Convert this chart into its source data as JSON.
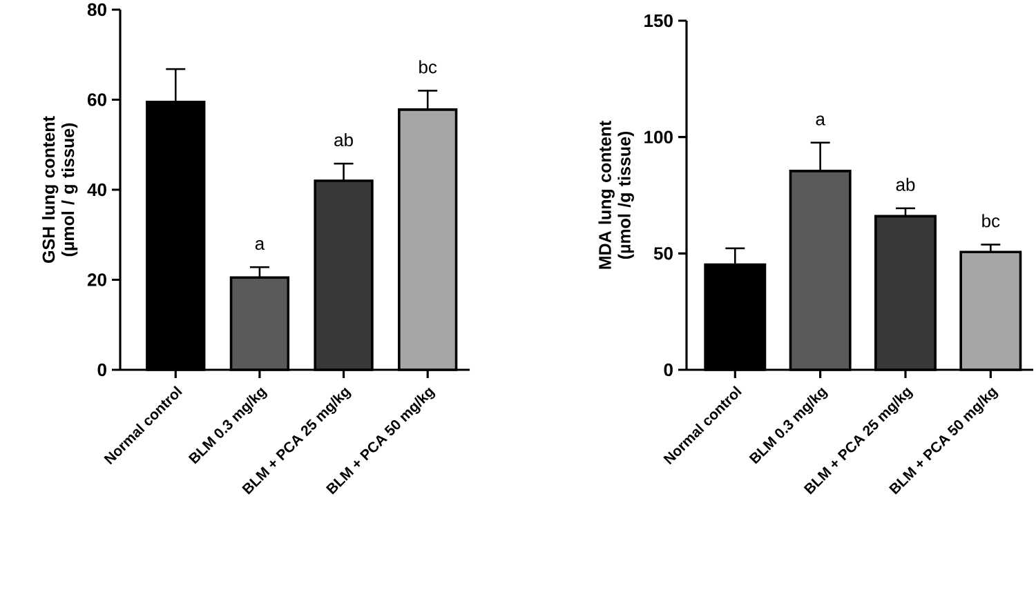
{
  "chart_data": [
    {
      "type": "bar",
      "ylabel": "GSH lung content (µmol / g tissue)",
      "categories": [
        "Normal control",
        "BLM 0.3 mg/kg",
        "BLM + PCA 25 mg/kg",
        "BLM + PCA 50 mg/kg"
      ],
      "values": [
        59.5,
        20.5,
        42,
        57.8
      ],
      "errors": [
        7.3,
        2.3,
        3.8,
        4.2
      ],
      "colors": [
        "#000000",
        "#5a5a5a",
        "#383838",
        "#a6a6a6"
      ],
      "ylim": [
        0,
        80
      ],
      "yticks": [
        0,
        20,
        40,
        60,
        80
      ],
      "annotations": [
        {
          "text": "a",
          "x": "BLM 0.3 mg/kg",
          "y": 22.8
        },
        {
          "text": "ab",
          "x": "BLM + PCA 25 mg/kg",
          "y": 45.8
        },
        {
          "text": "bc",
          "x": "BLM + PCA 50 mg/kg",
          "y": 62
        }
      ]
    },
    {
      "type": "bar",
      "ylabel": "MDA lung content (µmol /g tissue)",
      "categories": [
        "Normal control",
        "BLM 0.3 mg/kg",
        "BLM + PCA 25 mg/kg",
        "BLM + PCA 50 mg/kg"
      ],
      "values": [
        45.2,
        85.4,
        66,
        50.6
      ],
      "errors": [
        7,
        12.2,
        3.4,
        3.2
      ],
      "colors": [
        "#000000",
        "#5a5a5a",
        "#383838",
        "#a6a6a6"
      ],
      "ylim": [
        0,
        150
      ],
      "yticks": [
        0,
        50,
        100,
        150
      ],
      "annotations": [
        {
          "text": "a",
          "x": "BLM 0.3 mg/kg",
          "y": 97.6
        },
        {
          "text": "ab",
          "x": "BLM + PCA 25 mg/kg",
          "y": 69.4
        },
        {
          "text": "bc",
          "x": "BLM + PCA 50 mg/kg",
          "y": 53.8
        }
      ]
    }
  ]
}
